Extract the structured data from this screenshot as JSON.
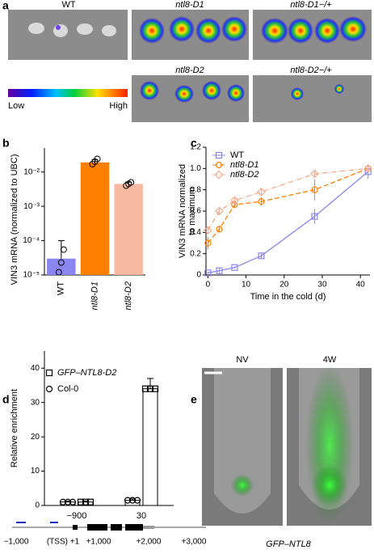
{
  "figure": {
    "panels": [
      "a",
      "b",
      "c",
      "d",
      "e"
    ],
    "a_labels": [
      "WT",
      "ntl8-D1",
      "ntl8-D1−/+",
      "ntl8-D2",
      "ntl8-D2−/+"
    ],
    "colorbar": [
      "Low",
      "High"
    ],
    "e_labels": [
      "NV",
      "4W"
    ],
    "e_caption": "GFP–NTL8",
    "gene_axis": [
      "−1,000",
      "(TSS) +1",
      "+1,000",
      "+2,000",
      "+3,000"
    ]
  },
  "chart_data": [
    {
      "type": "bar",
      "log_scale": true,
      "categories": [
        "WT",
        "ntl8-D1",
        "ntl8-D2"
      ],
      "values": [
        3e-05,
        0.019,
        0.0045
      ],
      "errors": [
        7e-05,
        0.004,
        0.0006
      ],
      "colors": [
        "#8a86f0",
        "#ff7f00",
        "#f9b9a0"
      ],
      "points": [
        [
          1.2e-05,
          2.3e-05,
          5.5e-05
        ],
        [
          0.017,
          0.02,
          0.024
        ],
        [
          0.004,
          0.0045,
          0.005
        ]
      ],
      "ylim": [
        1e-05,
        0.05
      ],
      "yticks": [
        {
          "value": 1e-05,
          "label": "10⁻⁵"
        },
        {
          "value": 0.0001,
          "label": "10⁻⁴"
        },
        {
          "value": 0.001,
          "label": "10⁻³"
        },
        {
          "value": 0.01,
          "label": "10⁻²"
        }
      ],
      "ylabel": "VIN3 mRNA (normalized to UBC)"
    },
    {
      "type": "line",
      "x": [
        0,
        3,
        7,
        14,
        28,
        42
      ],
      "series": [
        {
          "name": "WT",
          "color": "#8a86f0",
          "dash": "none",
          "marker": "square",
          "values": [
            0.02,
            0.04,
            0.07,
            0.18,
            0.55,
            0.97
          ],
          "errors": [
            0.01,
            0.02,
            0.01,
            0.03,
            0.07,
            0.07
          ]
        },
        {
          "name": "ntl8-D1",
          "color": "#ff7f00",
          "dash": "6 3",
          "marker": "circle",
          "values": [
            0.3,
            0.43,
            0.66,
            0.69,
            0.8,
            1.0
          ],
          "errors": [
            0.06,
            0.03,
            0.03,
            0.04,
            0.1,
            0.03
          ]
        },
        {
          "name": "ntl8-D2",
          "color": "#f4a98c",
          "dash": "6 2 1 2",
          "marker": "diamond",
          "values": [
            0.42,
            0.6,
            0.7,
            0.78,
            0.95,
            1.0
          ],
          "errors": [
            0.03,
            0.03,
            0.03,
            0.03,
            0.04,
            0.03
          ]
        }
      ],
      "xlim": [
        -0.5,
        42.5
      ],
      "xticks": [
        0,
        10,
        20,
        30,
        40
      ],
      "ylim": [
        0,
        1.2
      ],
      "yticks": [
        0,
        0.2,
        0.4,
        0.6,
        0.8,
        {
          "value": 1,
          "label": "1.0"
        },
        {
          "value": 1.2,
          "label": "1.2"
        }
      ],
      "xlabel": "Time in the cold (d)",
      "ylabel": [
        "VIN3 mRNA normalized",
        "to maximum"
      ],
      "legend": "upper left"
    },
    {
      "type": "grouped_bar",
      "categories": [
        "−900",
        "30"
      ],
      "series": [
        {
          "name": "GFP–NTL8-D2",
          "marker": "square",
          "values": [
            1,
            34
          ],
          "errors": [
            0.3,
            3
          ]
        },
        {
          "name": "Col-0",
          "marker": "circle",
          "values": [
            1,
            1.5
          ],
          "errors": [
            0.3,
            0.4
          ]
        }
      ],
      "ylim": [
        0,
        45
      ],
      "yticks": [
        0,
        10,
        20,
        30,
        40
      ],
      "ylabel": "Relative enrichment",
      "legend": "upper left"
    }
  ]
}
